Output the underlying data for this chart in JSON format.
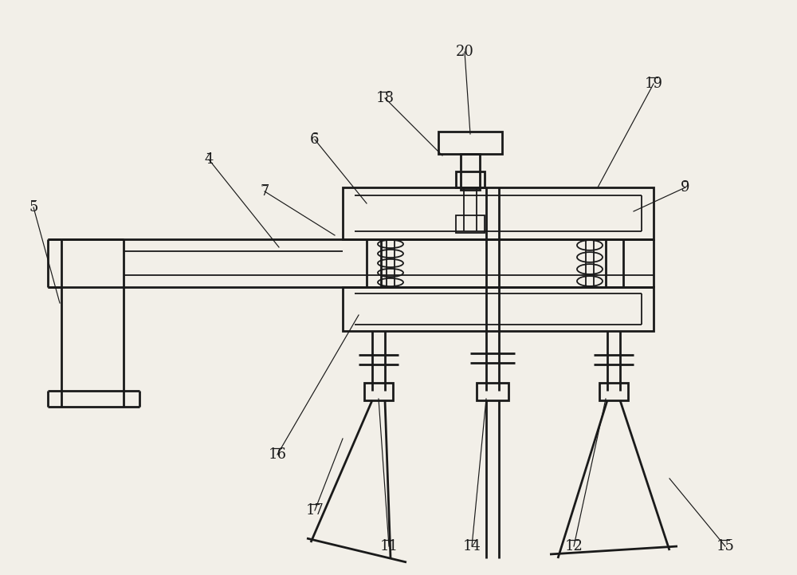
{
  "bg_color": "#f2efe8",
  "lc": "#1a1a1a",
  "lw1": 1.3,
  "lw2": 2.0,
  "fs": 13
}
